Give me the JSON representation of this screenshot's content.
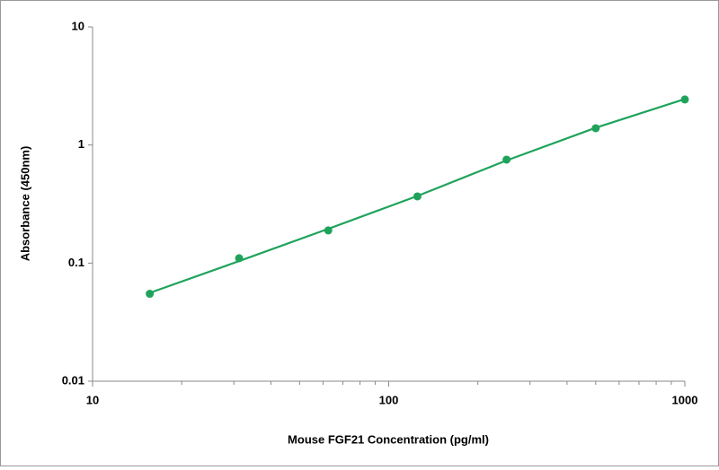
{
  "chart_data": {
    "type": "scatter",
    "x_label": "Mouse FGF21 Concentration (pg/ml)",
    "y_label": "Absorbance (450nm)",
    "log_x": true,
    "log_y": true,
    "xlim": [
      10,
      1000
    ],
    "ylim": [
      0.01,
      10
    ],
    "xticks": [
      10,
      100,
      1000
    ],
    "xminorticks": [
      20,
      30,
      40,
      50,
      60,
      70,
      80,
      90,
      200,
      300,
      400,
      500,
      600,
      700,
      800,
      900
    ],
    "yticks": [
      0.01,
      0.1,
      1,
      10
    ],
    "x": [
      15.6,
      31.25,
      62.5,
      125,
      250,
      500,
      1000
    ],
    "series": [
      {
        "color": "#1fa35b",
        "values": [
          0.055,
          0.11,
          0.189,
          0.367,
          0.752,
          1.387,
          2.43
        ]
      }
    ],
    "fit": {
      "color": "#1fa35b",
      "values": [
        0.056,
        0.104,
        0.195,
        0.37,
        0.74,
        1.4,
        2.45
      ]
    }
  }
}
